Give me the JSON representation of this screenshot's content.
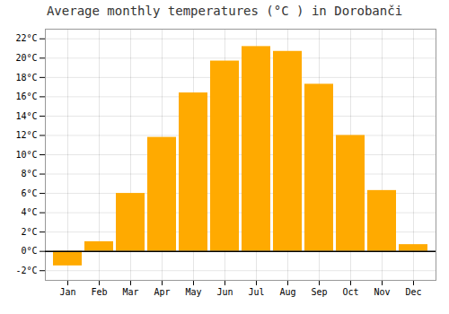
{
  "chart_data": {
    "type": "bar",
    "title": "Average monthly temperatures (°C ) in Dorobanči",
    "categories": [
      "Jan",
      "Feb",
      "Mar",
      "Apr",
      "May",
      "Jun",
      "Jul",
      "Aug",
      "Sep",
      "Oct",
      "Nov",
      "Dec"
    ],
    "values": [
      -1.5,
      1.0,
      6.0,
      11.8,
      16.4,
      19.7,
      21.2,
      20.7,
      17.3,
      12.0,
      6.3,
      0.7
    ],
    "color": "#FFAA00",
    "ylim": [
      -3,
      23
    ],
    "yticks": [
      {
        "value": -2,
        "label": "-2°C"
      },
      {
        "value": 0,
        "label": "0°C"
      },
      {
        "value": 2,
        "label": "2°C"
      },
      {
        "value": 4,
        "label": "4°C"
      },
      {
        "value": 6,
        "label": "6°C"
      },
      {
        "value": 8,
        "label": "8°C"
      },
      {
        "value": 10,
        "label": "10°C"
      },
      {
        "value": 12,
        "label": "12°C"
      },
      {
        "value": 14,
        "label": "14°C"
      },
      {
        "value": 16,
        "label": "16°C"
      },
      {
        "value": 18,
        "label": "18°C"
      },
      {
        "value": 20,
        "label": "20°C"
      },
      {
        "value": 22,
        "label": "22°C"
      }
    ],
    "grid": true
  }
}
